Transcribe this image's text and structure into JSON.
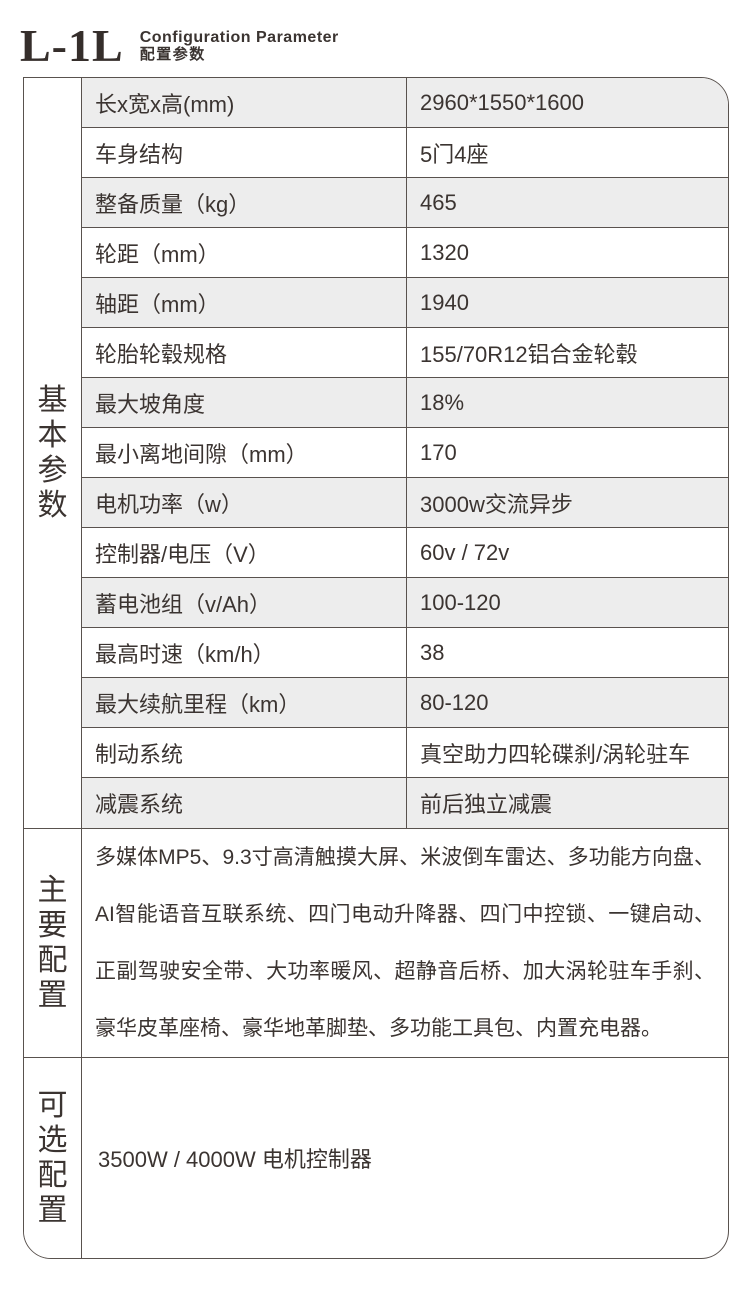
{
  "header": {
    "model": "L-1L",
    "subtitle_en": "Configuration Parameter",
    "subtitle_zh": "配置参数"
  },
  "sections": {
    "basic": {
      "title": "基本参数",
      "rows": [
        {
          "label": "长x宽x高(mm)",
          "value": "2960*1550*1600"
        },
        {
          "label": "车身结构",
          "value": "5门4座"
        },
        {
          "label": "整备质量（kg）",
          "value": "465"
        },
        {
          "label": "轮距（mm）",
          "value": "1320"
        },
        {
          "label": "轴距（mm）",
          "value": "1940"
        },
        {
          "label": "轮胎轮毂规格",
          "value": "155/70R12铝合金轮毂"
        },
        {
          "label": "最大坡角度",
          "value": "18%"
        },
        {
          "label": "最小离地间隙（mm）",
          "value": "170"
        },
        {
          "label": "电机功率（w）",
          "value": "3000w交流异步"
        },
        {
          "label": "控制器/电压（V）",
          "value": "60v / 72v"
        },
        {
          "label": "蓄电池组（v/Ah）",
          "value": "100-120"
        },
        {
          "label": "最高时速（km/h）",
          "value": "38"
        },
        {
          "label": "最大续航里程（km）",
          "value": "80-120"
        },
        {
          "label": "制动系统",
          "value": "真空助力四轮碟刹/涡轮驻车"
        },
        {
          "label": "减震系统",
          "value": "前后独立减震"
        }
      ]
    },
    "main": {
      "title": "主要配置",
      "text": "多媒体MP5、9.3寸高清触摸大屏、米波倒车雷达、多功能方向盘、AI智能语音互联系统、四门电动升降器、四门中控锁、一键启动、正副驾驶安全带、大功率暖风、超静音后桥、加大涡轮驻车手刹、豪华皮革座椅、豪华地革脚垫、多功能工具包、内置充电器。"
    },
    "optional": {
      "title": "可选配置",
      "text": "3500W / 4000W 电机控制器"
    }
  },
  "colors": {
    "line": "#59524e",
    "text": "#3b3431",
    "row_alt_bg": "#ededed"
  }
}
